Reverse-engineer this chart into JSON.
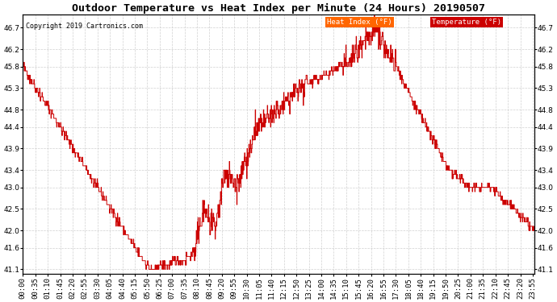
{
  "title": "Outdoor Temperature vs Heat Index per Minute (24 Hours) 20190507",
  "copyright": "Copyright 2019 Cartronics.com",
  "legend_labels": [
    "Heat Index (°F)",
    "Temperature (°F)"
  ],
  "legend_bg_colors": [
    "#ff6600",
    "#cc0000"
  ],
  "legend_text_color": "#ffffff",
  "line_color": "#cc0000",
  "bg_color": "#ffffff",
  "grid_color": "#cccccc",
  "ylim": [
    41.0,
    47.0
  ],
  "yticks": [
    41.1,
    41.6,
    42.0,
    42.5,
    43.0,
    43.4,
    43.9,
    44.4,
    44.8,
    45.3,
    45.8,
    46.2,
    46.7
  ],
  "title_fontsize": 9.5,
  "copyright_fontsize": 6,
  "tick_fontsize": 6.5
}
